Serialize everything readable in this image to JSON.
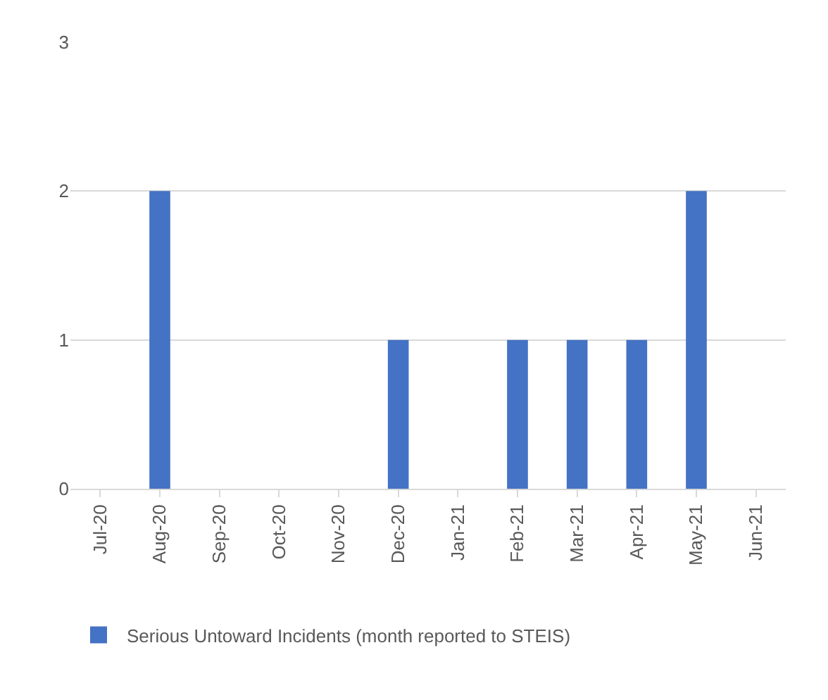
{
  "chart_data": {
    "type": "bar",
    "categories": [
      "Jul-20",
      "Aug-20",
      "Sep-20",
      "Oct-20",
      "Nov-20",
      "Dec-20",
      "Jan-21",
      "Feb-21",
      "Mar-21",
      "Apr-21",
      "May-21",
      "Jun-21"
    ],
    "series": [
      {
        "name": "Serious Untoward Incidents (month reported to STEIS)",
        "color": "#4472c4",
        "values": [
          0,
          2,
          0,
          0,
          0,
          1,
          0,
          1,
          1,
          1,
          2,
          0
        ]
      }
    ],
    "ylim": [
      0,
      3
    ],
    "yticks": [
      0,
      1,
      2,
      3
    ],
    "grid": "y",
    "legend": "bottom"
  }
}
